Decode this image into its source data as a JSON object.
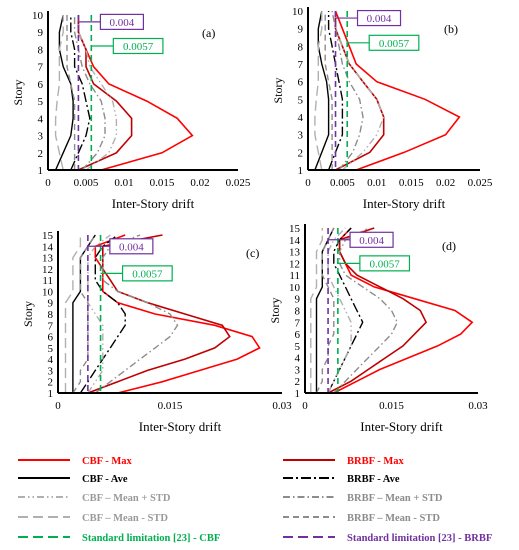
{
  "chart_data": [
    {
      "type": "line",
      "panel_label": "(a)",
      "xlabel": "Inter-Story drift",
      "ylabel": "Story",
      "xlim": [
        0,
        0.025
      ],
      "ylim": [
        1,
        10
      ],
      "xticks": [
        "0",
        "0.005",
        "0.01",
        "0.015",
        "0.02",
        "0.025"
      ],
      "xtick_values": [
        0,
        0.005,
        0.01,
        0.015,
        0.02,
        0.025
      ],
      "yticks": [
        1,
        2,
        3,
        4,
        5,
        6,
        7,
        8,
        9,
        10
      ],
      "stories": [
        1,
        2,
        3,
        4,
        5,
        6,
        7,
        8,
        9,
        10
      ],
      "annotations": [
        {
          "text": "0.004",
          "x": 0.004,
          "y": 9.6,
          "color": "#7030a0"
        },
        {
          "text": "0.0057",
          "x": 0.0057,
          "y": 8.2,
          "color": "#00b050"
        }
      ],
      "limits": [
        {
          "legend_ref": "std_brbf",
          "x": 0.004
        },
        {
          "legend_ref": "std_cbf",
          "x": 0.0057
        }
      ],
      "series": [
        {
          "legend_ref": "cbf_max",
          "values": [
            0.007,
            0.015,
            0.019,
            0.017,
            0.013,
            0.008,
            0.006,
            0.005,
            0.004,
            0.004
          ]
        },
        {
          "legend_ref": "brbf_max",
          "values": [
            0.004,
            0.009,
            0.011,
            0.011,
            0.009,
            0.006,
            0.005,
            0.005,
            0.004,
            0.004
          ]
        },
        {
          "legend_ref": "cbf_ave",
          "values": [
            0.001,
            0.002,
            0.003,
            0.0033,
            0.0033,
            0.003,
            0.002,
            0.0015,
            0.0015,
            0.002
          ]
        },
        {
          "legend_ref": "brbf_ave",
          "values": [
            0.003,
            0.004,
            0.005,
            0.0055,
            0.005,
            0.0045,
            0.0035,
            0.0035,
            0.003,
            0.003
          ]
        },
        {
          "legend_ref": "cbf_mpstd",
          "values": [
            0.005,
            0.008,
            0.009,
            0.009,
            0.0085,
            0.007,
            0.0055,
            0.005,
            0.004,
            0.004
          ]
        },
        {
          "legend_ref": "brbf_mpstd",
          "values": [
            0.0045,
            0.0065,
            0.0075,
            0.0075,
            0.007,
            0.0055,
            0.0045,
            0.004,
            0.0035,
            0.0035
          ]
        },
        {
          "legend_ref": "cbf_mmstd",
          "values": [
            0.002,
            0.0015,
            0.001,
            0.001,
            0.0012,
            0.0015,
            0.0015,
            0.0015,
            0.002,
            0.002
          ]
        },
        {
          "legend_ref": "brbf_mmstd",
          "values": [
            0.0035,
            0.0035,
            0.0035,
            0.0035,
            0.0035,
            0.003,
            0.0025,
            0.0025,
            0.0025,
            0.0025
          ]
        }
      ]
    },
    {
      "type": "line",
      "panel_label": "(b)",
      "xlabel": "Inter-Story drift",
      "ylabel": "Story",
      "xlim": [
        0,
        0.025
      ],
      "ylim": [
        1,
        10
      ],
      "xticks": [
        "0",
        "0.005",
        "0.01",
        "0.015",
        "0.02",
        "0.025"
      ],
      "xtick_values": [
        0,
        0.005,
        0.01,
        0.015,
        0.02,
        0.025
      ],
      "yticks": [
        1,
        2,
        3,
        4,
        5,
        6,
        7,
        8,
        9,
        10
      ],
      "stories": [
        1,
        2,
        3,
        4,
        5,
        6,
        7,
        8,
        9,
        10
      ],
      "annotations": [
        {
          "text": "0.004",
          "x": 0.004,
          "y": 9.6,
          "color": "#7030a0"
        },
        {
          "text": "0.0057",
          "x": 0.0057,
          "y": 8.2,
          "color": "#00b050"
        }
      ],
      "limits": [
        {
          "legend_ref": "std_brbf",
          "x": 0.004
        },
        {
          "legend_ref": "std_cbf",
          "x": 0.0057
        }
      ],
      "series": [
        {
          "legend_ref": "cbf_max",
          "values": [
            0.007,
            0.014,
            0.02,
            0.022,
            0.017,
            0.01,
            0.007,
            0.006,
            0.005,
            0.004
          ]
        },
        {
          "legend_ref": "brbf_max",
          "values": [
            0.004,
            0.009,
            0.011,
            0.011,
            0.01,
            0.008,
            0.006,
            0.005,
            0.004,
            0.004
          ]
        },
        {
          "legend_ref": "cbf_ave",
          "values": [
            0.001,
            0.002,
            0.003,
            0.003,
            0.003,
            0.0027,
            0.002,
            0.0015,
            0.0015,
            0.002
          ]
        },
        {
          "legend_ref": "brbf_ave",
          "values": [
            0.003,
            0.004,
            0.005,
            0.005,
            0.005,
            0.0045,
            0.004,
            0.0035,
            0.003,
            0.003
          ]
        },
        {
          "legend_ref": "cbf_mpstd",
          "values": [
            0.005,
            0.008,
            0.01,
            0.011,
            0.01,
            0.008,
            0.006,
            0.005,
            0.004,
            0.004
          ]
        },
        {
          "legend_ref": "brbf_mpstd",
          "values": [
            0.0045,
            0.0065,
            0.0075,
            0.008,
            0.0075,
            0.006,
            0.005,
            0.0045,
            0.004,
            0.0035
          ]
        },
        {
          "legend_ref": "cbf_mmstd",
          "values": [
            0.002,
            0.0015,
            0.001,
            0.001,
            0.0012,
            0.0015,
            0.0015,
            0.0015,
            0.002,
            0.002
          ]
        },
        {
          "legend_ref": "brbf_mmstd",
          "values": [
            0.0035,
            0.0035,
            0.0035,
            0.0035,
            0.0035,
            0.003,
            0.0025,
            0.0025,
            0.0025,
            0.0025
          ]
        }
      ]
    },
    {
      "type": "line",
      "panel_label": "(c)",
      "xlabel": "Inter-Story drift",
      "ylabel": "Story",
      "xlim": [
        0,
        0.03
      ],
      "ylim": [
        1,
        15
      ],
      "xticks": [
        "0",
        "0.015",
        "0.03"
      ],
      "xtick_values": [
        0,
        0.015,
        0.03
      ],
      "yticks": [
        1,
        2,
        3,
        4,
        5,
        6,
        7,
        8,
        9,
        10,
        11,
        12,
        13,
        14,
        15
      ],
      "stories": [
        1,
        2,
        3,
        4,
        5,
        6,
        7,
        8,
        9,
        10,
        11,
        12,
        13,
        14,
        15
      ],
      "annotations": [
        {
          "text": "0.004",
          "x": 0.004,
          "y": 14.0,
          "color": "#7030a0"
        },
        {
          "text": "0.0057",
          "x": 0.0057,
          "y": 11.6,
          "color": "#00b050"
        }
      ],
      "limits": [
        {
          "legend_ref": "std_brbf",
          "x": 0.004
        },
        {
          "legend_ref": "std_cbf",
          "x": 0.0057
        }
      ],
      "series": [
        {
          "legend_ref": "cbf_max",
          "values": [
            0.008,
            0.014,
            0.019,
            0.024,
            0.027,
            0.026,
            0.021,
            0.013,
            0.008,
            0.006,
            0.006,
            0.006,
            0.005,
            0.005,
            0.009
          ]
        },
        {
          "legend_ref": "brbf_max",
          "values": [
            0.004,
            0.008,
            0.012,
            0.017,
            0.021,
            0.023,
            0.022,
            0.017,
            0.012,
            0.008,
            0.007,
            0.006,
            0.006,
            0.006,
            0.014
          ]
        },
        {
          "legend_ref": "cbf_ave",
          "values": [
            0.002,
            0.002,
            0.002,
            0.002,
            0.002,
            0.002,
            0.002,
            0.002,
            0.002,
            0.003,
            0.003,
            0.003,
            0.003,
            0.004,
            0.005
          ]
        },
        {
          "legend_ref": "brbf_ave",
          "values": [
            0.003,
            0.004,
            0.005,
            0.006,
            0.007,
            0.008,
            0.009,
            0.009,
            0.008,
            0.006,
            0.005,
            0.005,
            0.005,
            0.006,
            0.008
          ]
        },
        {
          "legend_ref": "cbf_mpstd",
          "values": [
            0.004,
            0.005,
            0.006,
            0.006,
            0.006,
            0.006,
            0.006,
            0.005,
            0.004,
            0.004,
            0.004,
            0.004,
            0.004,
            0.005,
            0.007
          ]
        },
        {
          "legend_ref": "brbf_mpstd",
          "values": [
            0.005,
            0.007,
            0.009,
            0.011,
            0.013,
            0.015,
            0.016,
            0.015,
            0.012,
            0.008,
            0.006,
            0.006,
            0.006,
            0.007,
            0.011
          ]
        },
        {
          "legend_ref": "cbf_mmstd",
          "values": [
            0.001,
            0.001,
            0.001,
            0.001,
            0.001,
            0.001,
            0.001,
            0.001,
            0.001,
            0.002,
            0.002,
            0.002,
            0.002,
            0.003,
            0.003
          ]
        },
        {
          "legend_ref": "brbf_mmstd",
          "values": [
            0.002,
            0.003,
            0.003,
            0.004,
            0.004,
            0.004,
            0.004,
            0.004,
            0.004,
            0.003,
            0.003,
            0.003,
            0.003,
            0.004,
            0.005
          ]
        }
      ]
    },
    {
      "type": "line",
      "panel_label": "(d)",
      "xlabel": "Inter-Story drift",
      "ylabel": "Story",
      "xlim": [
        0,
        0.03
      ],
      "ylim": [
        1,
        15
      ],
      "xticks": [
        "0",
        "0.015",
        "0.03"
      ],
      "xtick_values": [
        0,
        0.015,
        0.03
      ],
      "yticks": [
        1,
        2,
        3,
        4,
        5,
        6,
        7,
        8,
        9,
        10,
        11,
        12,
        13,
        14,
        15
      ],
      "stories": [
        1,
        2,
        3,
        4,
        5,
        6,
        7,
        8,
        9,
        10,
        11,
        12,
        13,
        14,
        15
      ],
      "annotations": [
        {
          "text": "0.004",
          "x": 0.004,
          "y": 14.0,
          "color": "#7030a0"
        },
        {
          "text": "0.0057",
          "x": 0.0057,
          "y": 12.0,
          "color": "#00b050"
        }
      ],
      "limits": [
        {
          "legend_ref": "std_brbf",
          "x": 0.004
        },
        {
          "legend_ref": "std_cbf",
          "x": 0.0057
        }
      ],
      "series": [
        {
          "legend_ref": "cbf_max",
          "values": [
            0.005,
            0.009,
            0.013,
            0.018,
            0.023,
            0.027,
            0.029,
            0.026,
            0.019,
            0.012,
            0.008,
            0.007,
            0.006,
            0.006,
            0.008
          ]
        },
        {
          "legend_ref": "brbf_max",
          "values": [
            0.004,
            0.008,
            0.011,
            0.014,
            0.017,
            0.019,
            0.021,
            0.02,
            0.017,
            0.013,
            0.009,
            0.007,
            0.006,
            0.006,
            0.012
          ]
        },
        {
          "legend_ref": "cbf_ave",
          "values": [
            0.002,
            0.002,
            0.002,
            0.002,
            0.002,
            0.002,
            0.002,
            0.002,
            0.002,
            0.003,
            0.003,
            0.003,
            0.003,
            0.004,
            0.005
          ]
        },
        {
          "legend_ref": "brbf_ave",
          "values": [
            0.004,
            0.005,
            0.006,
            0.007,
            0.008,
            0.009,
            0.01,
            0.009,
            0.008,
            0.007,
            0.006,
            0.005,
            0.005,
            0.006,
            0.008
          ]
        },
        {
          "legend_ref": "cbf_mpstd",
          "values": [
            0.004,
            0.005,
            0.006,
            0.007,
            0.008,
            0.008,
            0.008,
            0.007,
            0.006,
            0.005,
            0.004,
            0.004,
            0.004,
            0.005,
            0.007
          ]
        },
        {
          "legend_ref": "brbf_mpstd",
          "values": [
            0.005,
            0.007,
            0.009,
            0.011,
            0.013,
            0.015,
            0.016,
            0.015,
            0.013,
            0.01,
            0.007,
            0.006,
            0.006,
            0.007,
            0.011
          ]
        },
        {
          "legend_ref": "cbf_mmstd",
          "values": [
            0.001,
            0.001,
            0.001,
            0.001,
            0.001,
            0.001,
            0.001,
            0.001,
            0.001,
            0.002,
            0.002,
            0.002,
            0.002,
            0.003,
            0.003
          ]
        },
        {
          "legend_ref": "brbf_mmstd",
          "values": [
            0.002,
            0.003,
            0.003,
            0.004,
            0.004,
            0.005,
            0.005,
            0.005,
            0.005,
            0.004,
            0.003,
            0.003,
            0.003,
            0.004,
            0.005
          ]
        }
      ]
    }
  ],
  "legend": [
    {
      "key": "cbf_max",
      "label": "CBF - Max",
      "color": "#ff0000",
      "dash": "solid",
      "text_color": "#ff0000"
    },
    {
      "key": "brbf_max",
      "label": "BRBF - Max",
      "color": "#c00000",
      "dash": "solid",
      "text_color": "#ff0000"
    },
    {
      "key": "cbf_ave",
      "label": "CBF - Ave",
      "color": "#000000",
      "dash": "solid",
      "text_color": "#000000"
    },
    {
      "key": "brbf_ave",
      "label": "BRBF - Ave",
      "color": "#000000",
      "dash": "longdashdot",
      "text_color": "#000000"
    },
    {
      "key": "cbf_mpstd",
      "label": "CBF – Mean + STD",
      "color": "#b0b0b0",
      "dash": "dashdotdot",
      "text_color": "#9a9a9a"
    },
    {
      "key": "brbf_mpstd",
      "label": "BRBF – Mean + STD",
      "color": "#8c8c8c",
      "dash": "dashdot",
      "text_color": "#8c8c8c"
    },
    {
      "key": "cbf_mmstd",
      "label": "CBF – Mean - STD",
      "color": "#b0b0b0",
      "dash": "longdash",
      "text_color": "#9a9a9a"
    },
    {
      "key": "brbf_mmstd",
      "label": "BRBF – Mean - STD",
      "color": "#8c8c8c",
      "dash": "dash",
      "text_color": "#8c8c8c"
    },
    {
      "key": "std_cbf",
      "label": "Standard limitation [23] - CBF",
      "color": "#00b050",
      "dash": "longdash",
      "text_color": "#00b050"
    },
    {
      "key": "std_brbf",
      "label": "Standard limitation [23] - BRBF",
      "color": "#7030a0",
      "dash": "longdash",
      "text_color": "#7030a0"
    }
  ]
}
